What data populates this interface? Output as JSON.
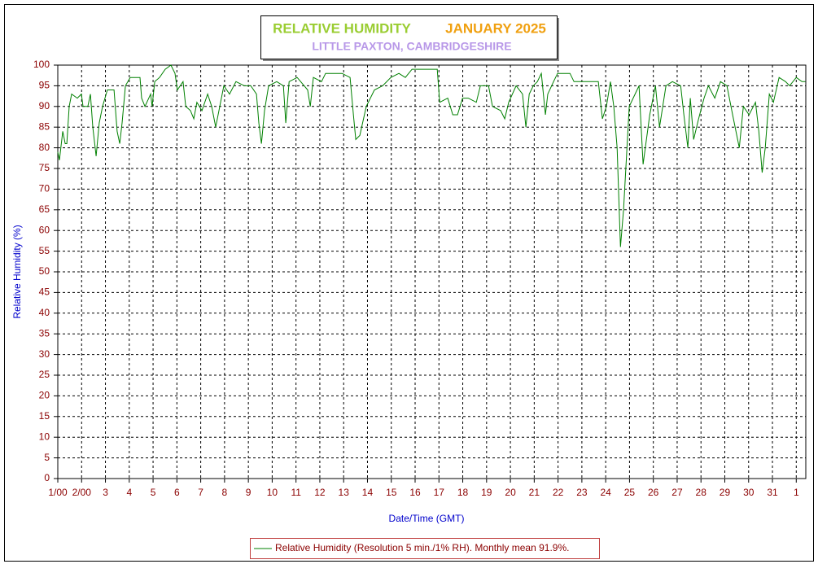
{
  "chart_data": {
    "type": "line",
    "title": "RELATIVE HUMIDITY",
    "title_period": "JANUARY 2025",
    "subtitle": "LITTLE PAXTON, CAMBRIDGESHIRE",
    "x_label": "Date/Time (GMT)",
    "y_label": "Relative Humidity (%)",
    "xlim": [
      1,
      32.4
    ],
    "ylim": [
      0,
      100
    ],
    "xticks": [
      {
        "value": 1,
        "label": "1/00"
      },
      {
        "value": 2,
        "label": "2/00"
      },
      3,
      4,
      5,
      6,
      7,
      8,
      9,
      10,
      11,
      12,
      13,
      14,
      15,
      16,
      17,
      18,
      19,
      20,
      21,
      22,
      23,
      24,
      25,
      26,
      27,
      28,
      29,
      30,
      31,
      {
        "value": 32,
        "label": "1"
      }
    ],
    "yticks": [
      0,
      5,
      10,
      15,
      20,
      25,
      30,
      35,
      40,
      45,
      50,
      55,
      60,
      65,
      70,
      75,
      80,
      85,
      90,
      95,
      100
    ],
    "grid": true,
    "legend": "bottom",
    "x": [
      1.0,
      1.07,
      1.21,
      1.31,
      1.38,
      1.48,
      1.58,
      1.82,
      1.99,
      2.06,
      2.26,
      2.37,
      2.47,
      2.61,
      2.74,
      2.88,
      3.08,
      3.36,
      3.49,
      3.6,
      3.7,
      3.84,
      4.04,
      4.45,
      4.52,
      4.66,
      4.9,
      4.96,
      5.07,
      5.27,
      5.51,
      5.75,
      5.92,
      6.02,
      6.26,
      6.37,
      6.57,
      6.71,
      6.84,
      7.05,
      7.29,
      7.46,
      7.63,
      7.8,
      7.97,
      8.21,
      8.48,
      8.83,
      9.1,
      9.34,
      9.44,
      9.55,
      9.68,
      9.85,
      10.19,
      10.47,
      10.57,
      10.71,
      11.05,
      11.49,
      11.6,
      11.73,
      12.07,
      12.24,
      12.93,
      13.27,
      13.41,
      13.51,
      13.68,
      13.95,
      14.29,
      14.64,
      14.98,
      15.32,
      15.59,
      15.87,
      16.35,
      16.93,
      17.03,
      17.37,
      17.58,
      17.78,
      17.99,
      18.23,
      18.57,
      18.74,
      19.08,
      19.25,
      19.59,
      19.76,
      19.93,
      20.24,
      20.51,
      20.65,
      20.79,
      20.96,
      21.13,
      21.3,
      21.47,
      21.57,
      21.81,
      21.98,
      22.33,
      22.5,
      22.67,
      22.98,
      23.69,
      23.86,
      24.03,
      24.2,
      24.34,
      24.48,
      24.62,
      24.75,
      24.99,
      25.4,
      25.57,
      25.85,
      26.09,
      26.26,
      26.53,
      26.8,
      27.15,
      27.28,
      27.45,
      27.55,
      27.69,
      27.9,
      28.13,
      28.31,
      28.58,
      28.82,
      29.09,
      29.33,
      29.61,
      29.78,
      30.02,
      30.29,
      30.43,
      30.57,
      30.7,
      30.87,
      31.04,
      31.28,
      31.55,
      31.72,
      32.0,
      32.24,
      32.38
    ],
    "series": [
      {
        "name": "Relative Humidity (Resolution 5 min./1% RH). Monthly mean 91.9%.",
        "color": "#008000",
        "values": [
          79,
          77,
          84,
          81,
          81,
          90,
          93,
          92,
          93,
          90,
          90,
          93,
          85,
          78,
          86,
          90,
          94,
          94,
          84,
          81,
          86,
          95,
          97,
          97,
          92,
          90,
          93,
          90,
          96,
          97,
          99,
          100,
          98,
          94,
          96,
          90,
          89,
          87,
          91,
          89,
          93,
          90,
          85,
          90,
          95,
          93,
          96,
          95,
          95,
          93,
          86,
          81,
          89,
          95,
          96,
          95,
          86,
          96,
          97,
          94,
          90,
          97,
          96,
          98,
          98,
          97,
          88,
          82,
          83,
          90,
          94,
          95,
          97,
          98,
          97,
          99,
          99,
          99,
          91,
          92,
          88,
          88,
          92,
          92,
          91,
          95,
          95,
          90,
          89,
          87,
          91,
          95,
          93,
          85,
          93,
          95,
          96,
          98,
          88,
          93,
          96,
          98,
          98,
          98,
          96,
          96,
          96,
          87,
          90,
          96,
          90,
          80,
          56,
          65,
          90,
          95,
          76,
          88,
          95,
          85,
          95,
          96,
          95,
          88,
          80,
          92,
          82,
          87,
          92,
          95,
          92,
          96,
          95,
          88,
          80,
          90,
          88,
          91,
          84,
          74,
          80,
          93,
          91,
          97,
          96,
          95,
          97,
          96,
          96
        ]
      }
    ]
  }
}
